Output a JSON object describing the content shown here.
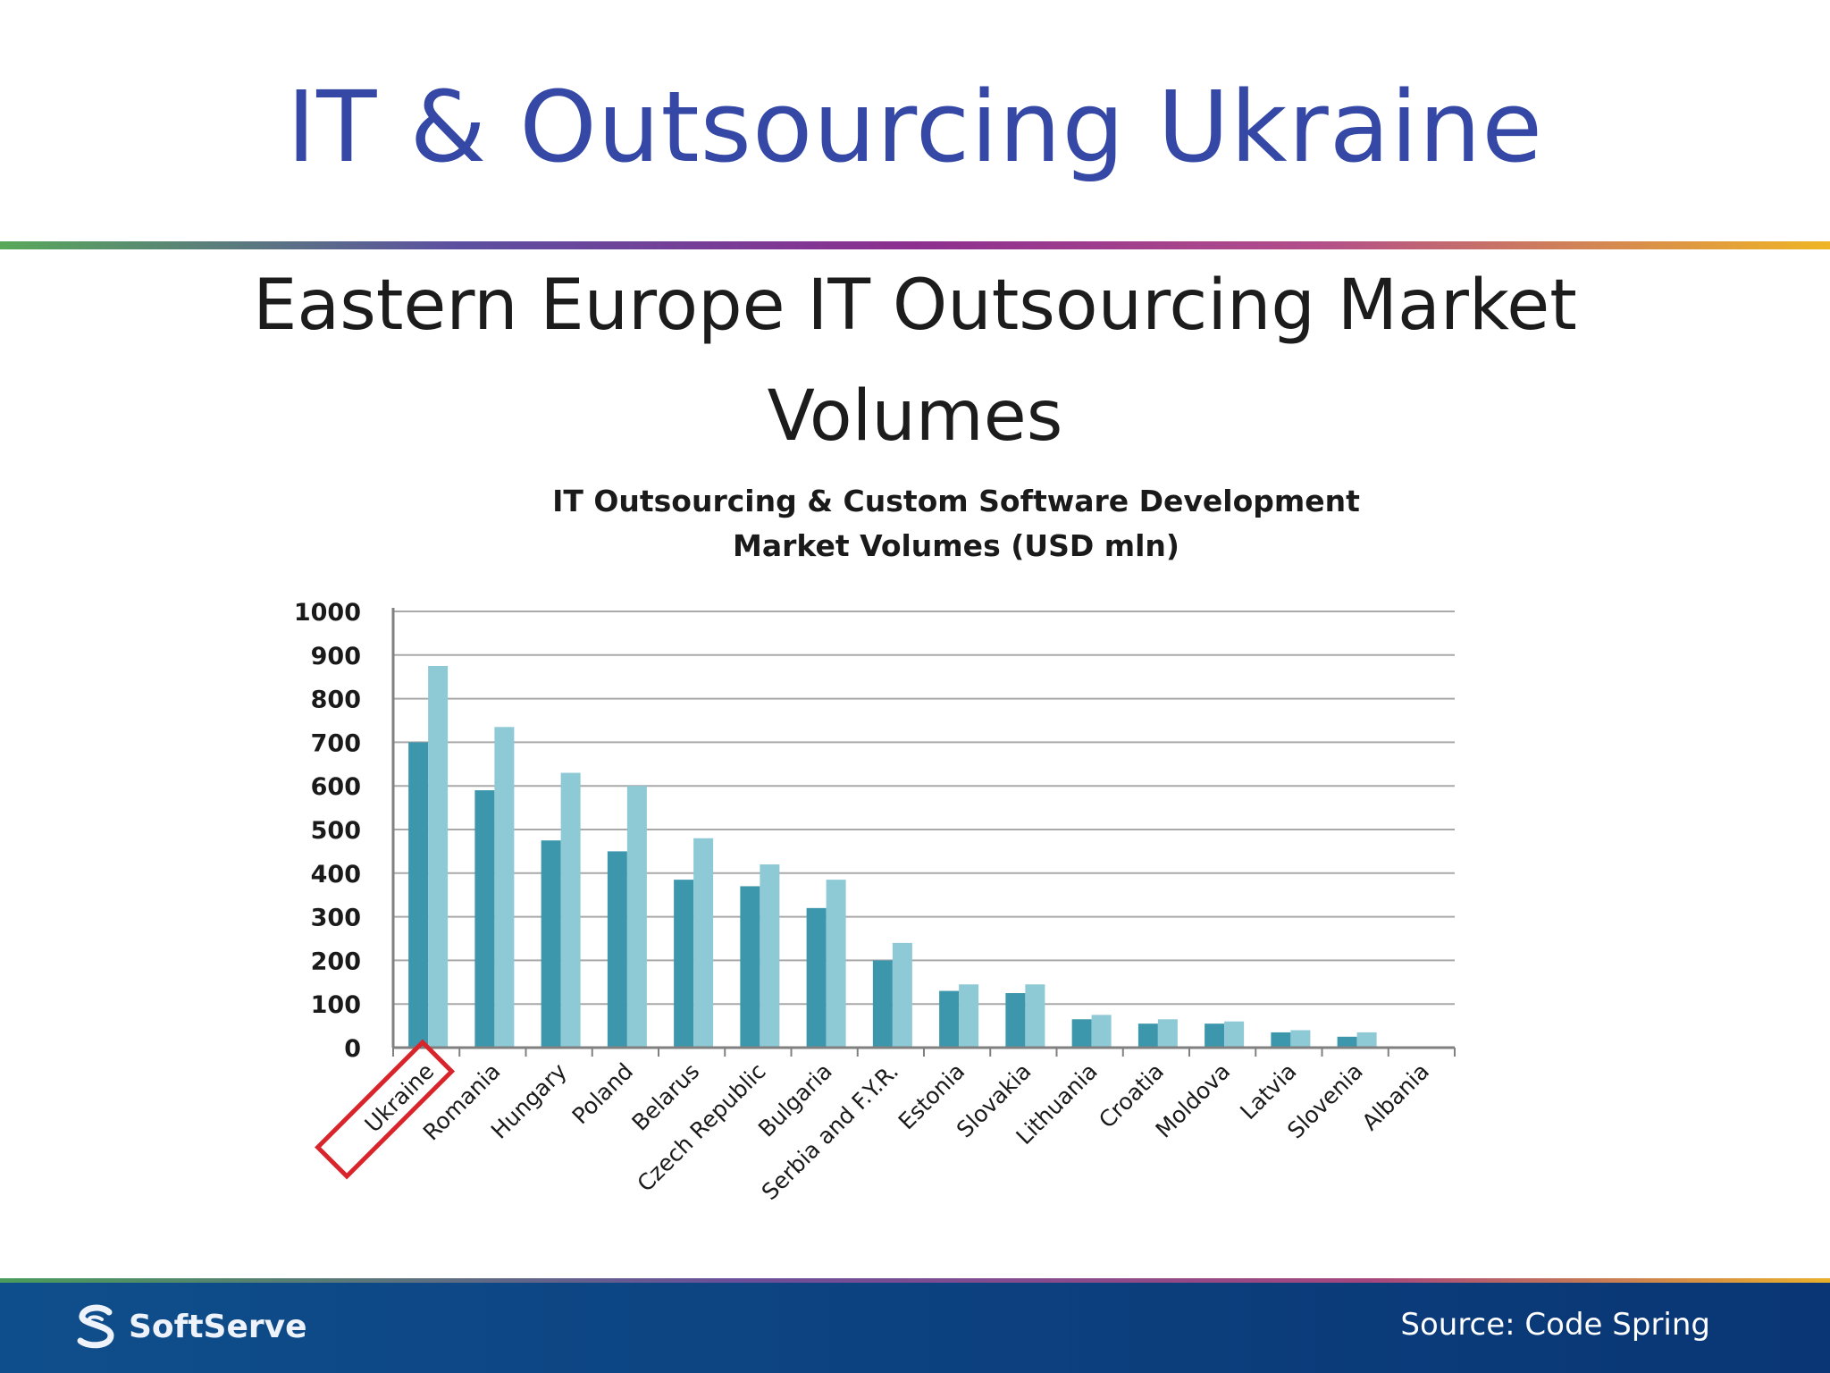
{
  "slide": {
    "title": "IT & Outsourcing Ukraine",
    "subtitle_line1": "Eastern Europe IT Outsourcing Market",
    "subtitle_line2": "Volumes"
  },
  "footer": {
    "logo_text": "SoftServe",
    "source": "Source: Code Spring"
  },
  "colors": {
    "title": "#3548a6",
    "series_dark": "#3d97ac",
    "series_light": "#8ec9d6",
    "highlight_box": "#d8252c"
  },
  "chart_data": {
    "type": "bar",
    "title_line1": "IT Outsourcing & Custom Software Development",
    "title_line2": "Market Volumes (USD mln)",
    "xlabel": "",
    "ylabel": "",
    "ylim": [
      0,
      1000
    ],
    "yticks": [
      0,
      100,
      200,
      300,
      400,
      500,
      600,
      700,
      800,
      900,
      1000
    ],
    "grid": true,
    "legend": "none",
    "highlighted_category": "Ukraine",
    "categories": [
      "Ukraine",
      "Romania",
      "Hungary",
      "Poland",
      "Belarus",
      "Czech Republic",
      "Bulgaria",
      "Serbia and F.Y.R.",
      "Estonia",
      "Slovakia",
      "Lithuania",
      "Croatia",
      "Moldova",
      "Latvia",
      "Slovenia",
      "Albania"
    ],
    "series": [
      {
        "values": [
          700,
          590,
          475,
          450,
          385,
          370,
          320,
          200,
          130,
          125,
          65,
          55,
          55,
          35,
          25,
          2
        ]
      },
      {
        "values": [
          875,
          735,
          630,
          600,
          480,
          420,
          385,
          240,
          145,
          145,
          75,
          65,
          60,
          40,
          35,
          3
        ]
      }
    ]
  }
}
